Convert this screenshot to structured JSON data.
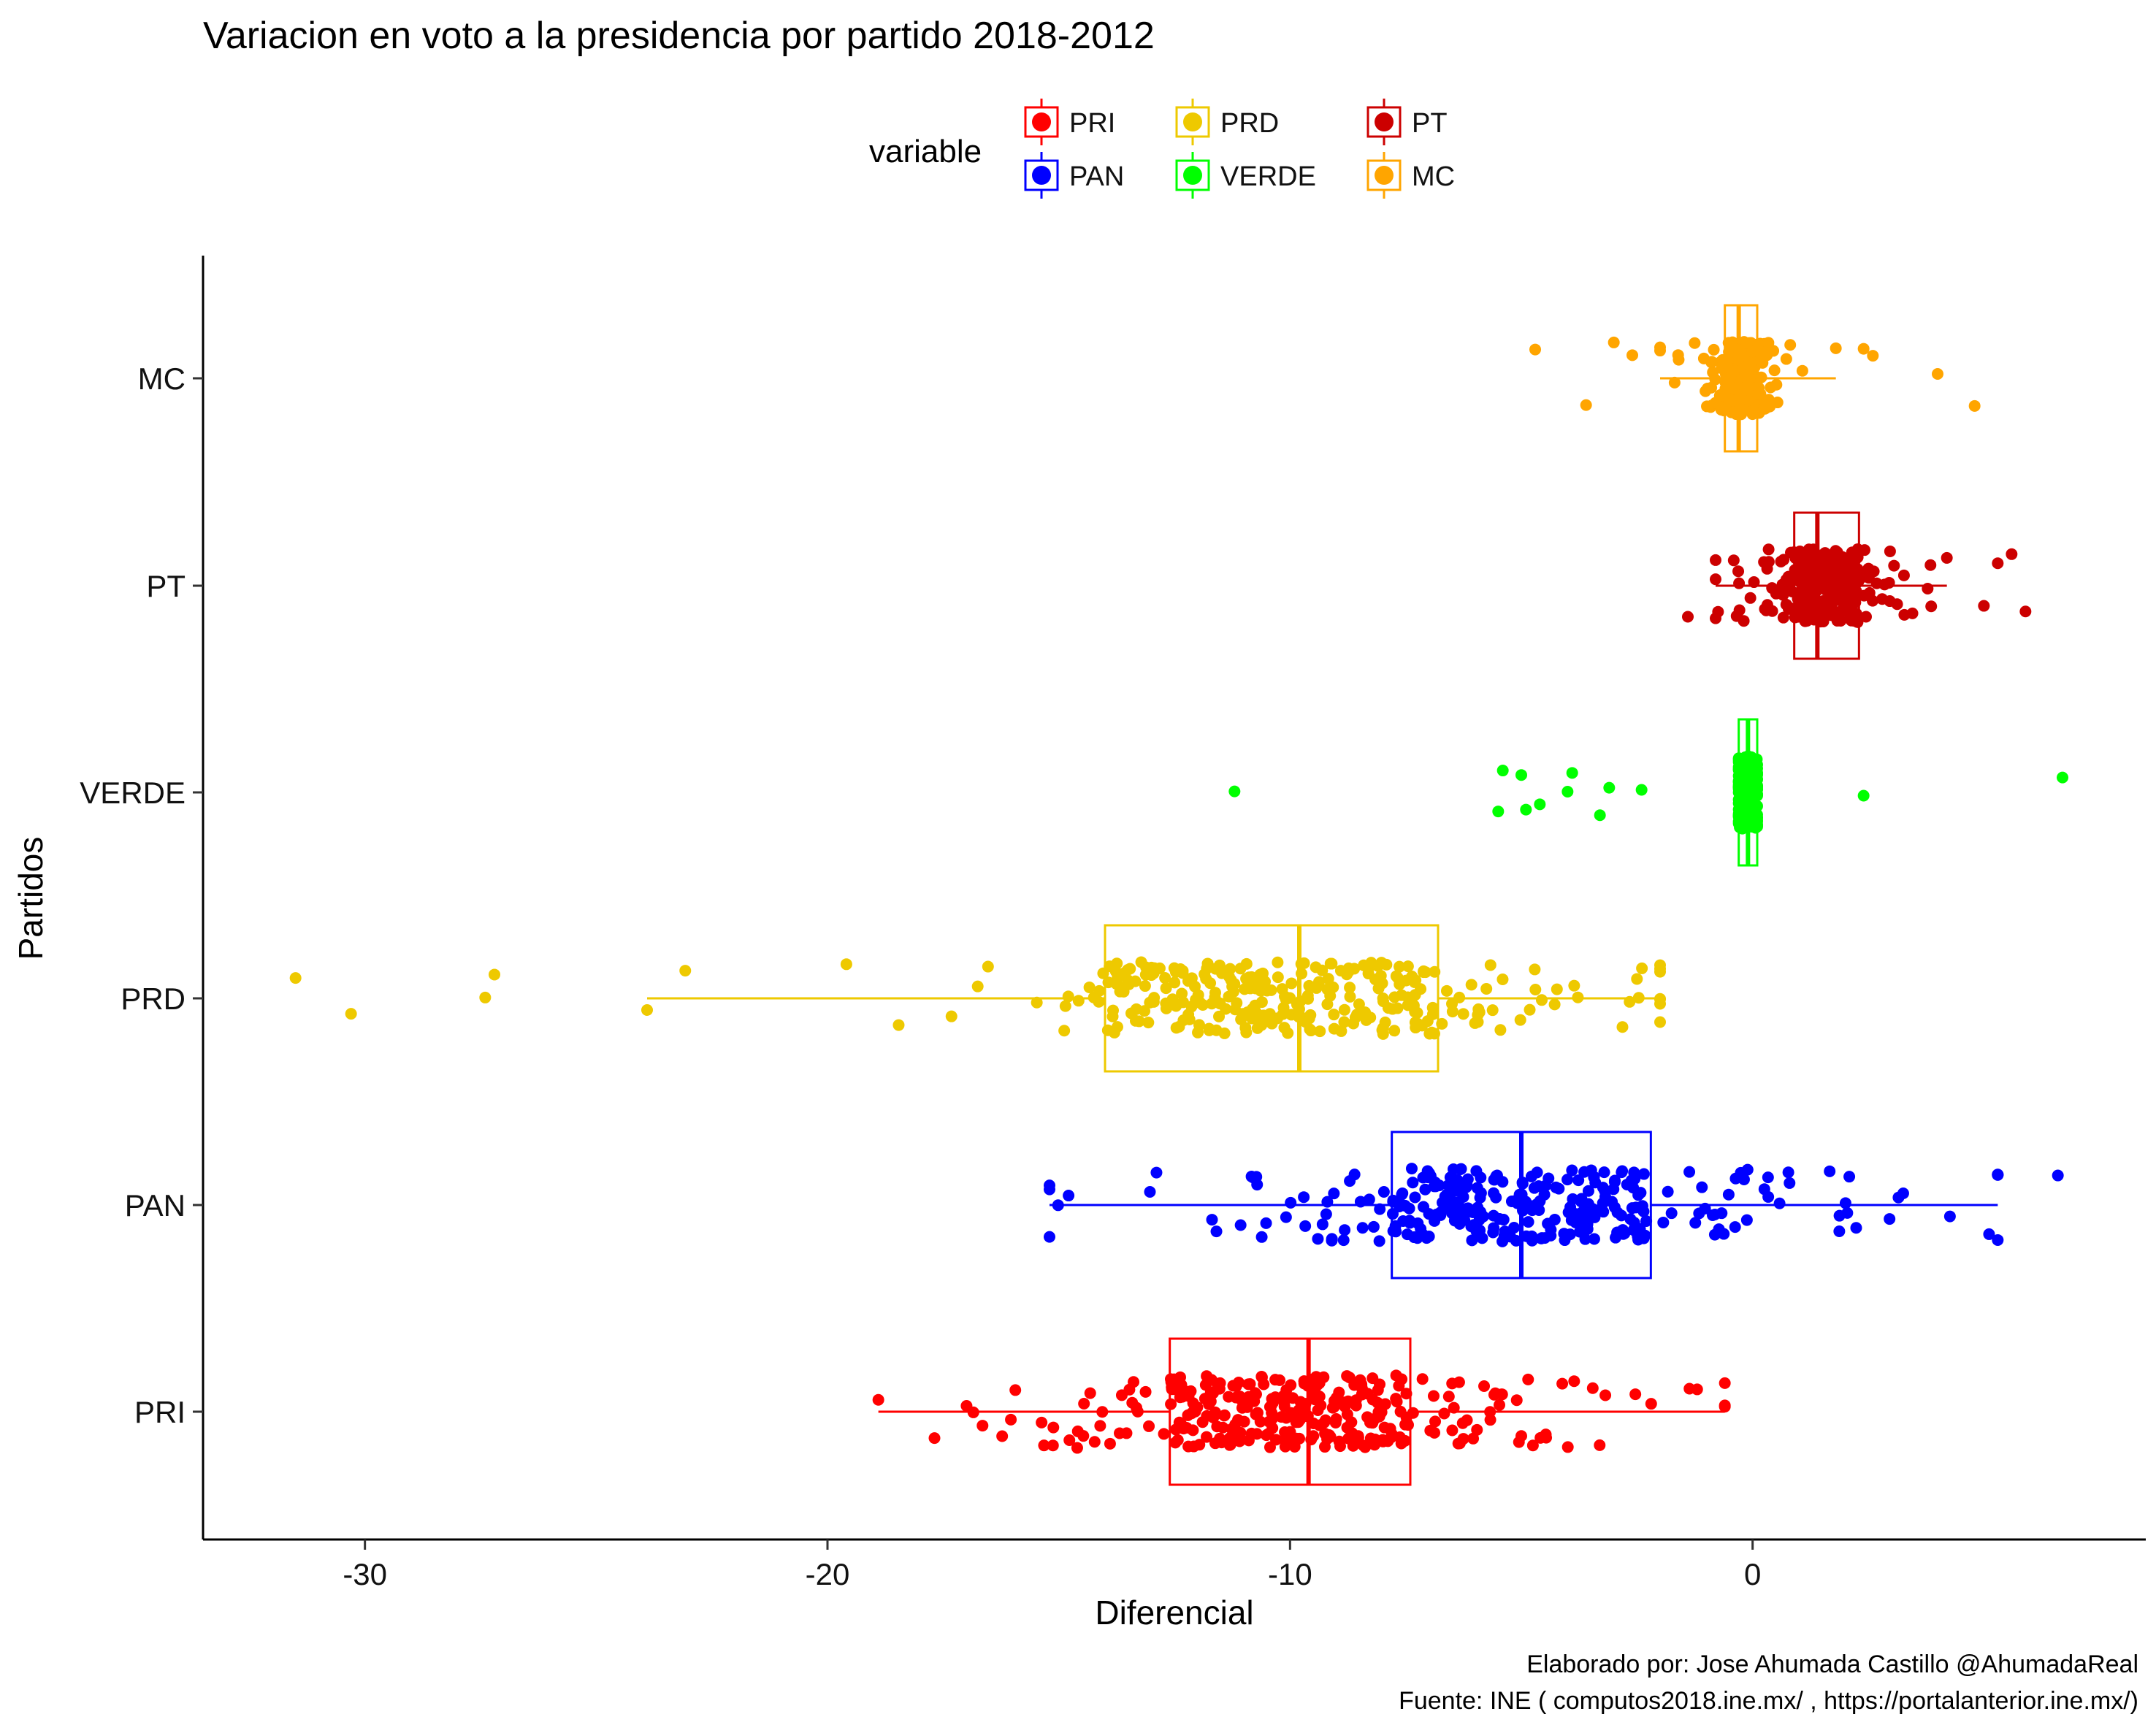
{
  "chart_data": {
    "type": "boxplot-jitter",
    "title": "Variacion en voto a la presidencia por partido 2018-2012",
    "xlabel": "Diferencial",
    "ylabel": "Partidos",
    "xlim": [
      -33.5,
      8.5
    ],
    "x_ticks": [
      -30,
      -20,
      -10,
      0
    ],
    "x_tick_labels": [
      "-30",
      "-20",
      "-10",
      "0"
    ],
    "categories": [
      "PRI",
      "PAN",
      "PRD",
      "VERDE",
      "PT",
      "MC"
    ],
    "legend": {
      "title": "variable",
      "position": "top",
      "items": [
        "PRI",
        "PAN",
        "PRD",
        "VERDE",
        "PT",
        "MC"
      ]
    },
    "series": [
      {
        "name": "PRI",
        "color": "#ff0000",
        "min": -18.9,
        "q1": -12.6,
        "median": -9.6,
        "q3": -7.4,
        "max": -0.6,
        "n": 320,
        "spread": 3.5,
        "outliers": []
      },
      {
        "name": "PAN",
        "color": "#0000ff",
        "min": -15.2,
        "q1": -7.8,
        "median": -5.0,
        "q3": -2.2,
        "max": 5.3,
        "n": 320,
        "spread": 4.2,
        "outliers": [
          6.6
        ]
      },
      {
        "name": "PRD",
        "color": "#eec900",
        "min": -23.9,
        "q1": -14.0,
        "median": -9.8,
        "q3": -6.8,
        "max": -2.0,
        "n": 300,
        "spread": 4.0,
        "outliers": [
          -31.5,
          -30.3,
          -27.4,
          -27.2
        ]
      },
      {
        "name": "VERDE",
        "color": "#00ff00",
        "min": -0.3,
        "q1": -0.3,
        "median": -0.1,
        "q3": 0.1,
        "max": 0.1,
        "n": 170,
        "spread": 0.4,
        "outliers": [
          -11.2,
          -5.5,
          -5.4,
          -5.0,
          -4.9,
          -4.6,
          -4.0,
          -3.9,
          -3.3,
          -3.1,
          -2.4,
          2.4,
          6.7
        ]
      },
      {
        "name": "PT",
        "color": "#cc0000",
        "min": -0.8,
        "q1": 0.9,
        "median": 1.4,
        "q3": 2.3,
        "max": 4.2,
        "n": 260,
        "spread": 1.0,
        "outliers": [
          -1.4,
          5.0,
          5.3,
          5.6,
          5.9
        ]
      },
      {
        "name": "MC",
        "color": "#ffa500",
        "min": -2.0,
        "q1": -0.6,
        "median": -0.3,
        "q3": 0.1,
        "max": 1.8,
        "n": 220,
        "spread": 0.6,
        "outliers": [
          -4.7,
          -3.6,
          -3.0,
          -2.6,
          2.4,
          2.6,
          4.0,
          4.8
        ]
      }
    ]
  },
  "caption": {
    "line1": "Elaborado por: Jose Ahumada Castillo @AhumadaReal",
    "line2": "Fuente: INE ( computos2018.ine.mx/ , https://portalanterior.ine.mx/)"
  }
}
